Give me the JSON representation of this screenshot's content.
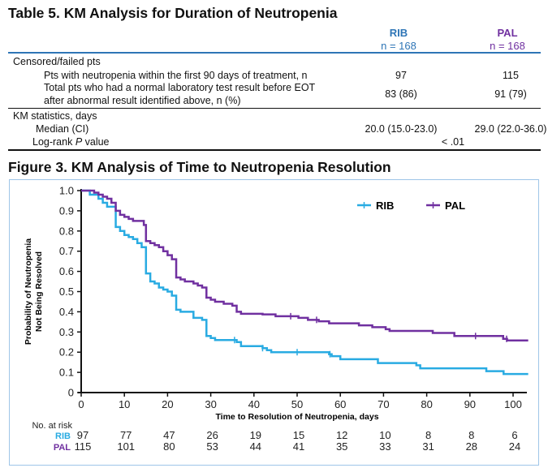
{
  "table": {
    "title": "Table 5. KM Analysis for Duration of Neutropenia",
    "columns": [
      {
        "name": "RIB",
        "n": "n = 168",
        "color": "#2e75b6"
      },
      {
        "name": "PAL",
        "n": "n = 168",
        "color": "#7030a0"
      }
    ],
    "rows": [
      {
        "label": "Censored/failed pts",
        "values": [
          "",
          ""
        ]
      },
      {
        "label": "Pts with neutropenia within the first 90 days of treatment, n",
        "values": [
          "97",
          "115"
        ]
      },
      {
        "label": "Total pts who had a normal laboratory test result before EOT",
        "label2": "after abnormal result identified above, n (%)",
        "values": [
          "83 (86)",
          "91 (79)"
        ]
      },
      {
        "label": "KM statistics, days",
        "values": [
          "",
          ""
        ]
      },
      {
        "label": "Median (CI)",
        "values": [
          "20.0 (15.0-23.0)",
          "29.0 (22.0-36.0)"
        ]
      },
      {
        "label": "Log-rank ",
        "label_italic": "P",
        "label_after": " value",
        "value_span": "< .01"
      }
    ]
  },
  "figure": {
    "title": "Figure 3. KM Analysis of Time to Neutropenia Resolution",
    "at_risk_label": "No. at risk"
  },
  "chart_data": {
    "type": "line",
    "subtype": "kaplan-meier step",
    "xlabel": "Time to Resolution of Neutropenia, days",
    "ylabel": "Probability of Neutropenia Not Being Resolved",
    "xlim": [
      0,
      103
    ],
    "ylim": [
      0,
      1.0
    ],
    "xticks": [
      0,
      10,
      20,
      30,
      40,
      50,
      60,
      70,
      80,
      90,
      100
    ],
    "yticks": [
      "0",
      "0.1",
      "0.2",
      "0.3",
      "0.4",
      "0.5",
      "0.6",
      "0.7",
      "0.8",
      "0.9",
      "1.0"
    ],
    "legend_position": "top-right",
    "grid": false,
    "series": [
      {
        "name": "RIB",
        "color": "#29abe2",
        "steps": [
          [
            0,
            1.0
          ],
          [
            2,
            0.98
          ],
          [
            4,
            0.96
          ],
          [
            5,
            0.94
          ],
          [
            6,
            0.92
          ],
          [
            8,
            0.82
          ],
          [
            9,
            0.8
          ],
          [
            10,
            0.78
          ],
          [
            11,
            0.77
          ],
          [
            12,
            0.76
          ],
          [
            13,
            0.74
          ],
          [
            14,
            0.72
          ],
          [
            15,
            0.59
          ],
          [
            16,
            0.55
          ],
          [
            17,
            0.54
          ],
          [
            18,
            0.52
          ],
          [
            19,
            0.51
          ],
          [
            20,
            0.5
          ],
          [
            21,
            0.48
          ],
          [
            22,
            0.41
          ],
          [
            23,
            0.4
          ],
          [
            26,
            0.37
          ],
          [
            28,
            0.36
          ],
          [
            29,
            0.28
          ],
          [
            30,
            0.27
          ],
          [
            31,
            0.26
          ],
          [
            36,
            0.25
          ],
          [
            37,
            0.23
          ],
          [
            42,
            0.22
          ],
          [
            43,
            0.21
          ],
          [
            44,
            0.2
          ],
          [
            57.4,
            0.19
          ],
          [
            58,
            0.18
          ],
          [
            60,
            0.165
          ],
          [
            68.7,
            0.146
          ],
          [
            77.6,
            0.135
          ],
          [
            78.5,
            0.12
          ],
          [
            93.8,
            0.106
          ],
          [
            97.8,
            0.092
          ],
          [
            103.5,
            0.092
          ]
        ],
        "censored": [
          35.5,
          42,
          50,
          57.6
        ],
        "at_risk": [
          97,
          77,
          47,
          26,
          19,
          15,
          12,
          10,
          8,
          8,
          6
        ]
      },
      {
        "name": "PAL",
        "color": "#7030a0",
        "steps": [
          [
            0,
            1.0
          ],
          [
            3,
            0.99
          ],
          [
            4,
            0.98
          ],
          [
            5,
            0.97
          ],
          [
            6,
            0.96
          ],
          [
            7,
            0.94
          ],
          [
            8,
            0.9
          ],
          [
            9,
            0.88
          ],
          [
            10,
            0.87
          ],
          [
            11,
            0.86
          ],
          [
            12,
            0.85
          ],
          [
            14.5,
            0.83
          ],
          [
            15,
            0.75
          ],
          [
            16,
            0.74
          ],
          [
            17,
            0.73
          ],
          [
            18,
            0.72
          ],
          [
            19,
            0.7
          ],
          [
            20,
            0.68
          ],
          [
            21,
            0.66
          ],
          [
            22,
            0.57
          ],
          [
            23,
            0.56
          ],
          [
            24,
            0.55
          ],
          [
            26,
            0.54
          ],
          [
            27,
            0.53
          ],
          [
            28,
            0.52
          ],
          [
            29,
            0.47
          ],
          [
            30,
            0.46
          ],
          [
            31,
            0.45
          ],
          [
            33,
            0.44
          ],
          [
            35,
            0.43
          ],
          [
            36,
            0.4
          ],
          [
            37,
            0.39
          ],
          [
            42,
            0.387
          ],
          [
            45,
            0.378
          ],
          [
            50.3,
            0.37
          ],
          [
            52.5,
            0.36
          ],
          [
            55,
            0.353
          ],
          [
            57.4,
            0.343
          ],
          [
            64.3,
            0.333
          ],
          [
            67.4,
            0.324
          ],
          [
            70.5,
            0.314
          ],
          [
            71.4,
            0.305
          ],
          [
            81.4,
            0.295
          ],
          [
            86.4,
            0.28
          ],
          [
            97.7,
            0.266
          ],
          [
            98.6,
            0.258
          ],
          [
            103.5,
            0.258
          ]
        ],
        "censored": [
          48.5,
          54.5,
          91.3,
          98.5
        ],
        "at_risk": [
          115,
          101,
          80,
          53,
          44,
          41,
          35,
          33,
          31,
          28,
          24
        ]
      }
    ]
  }
}
